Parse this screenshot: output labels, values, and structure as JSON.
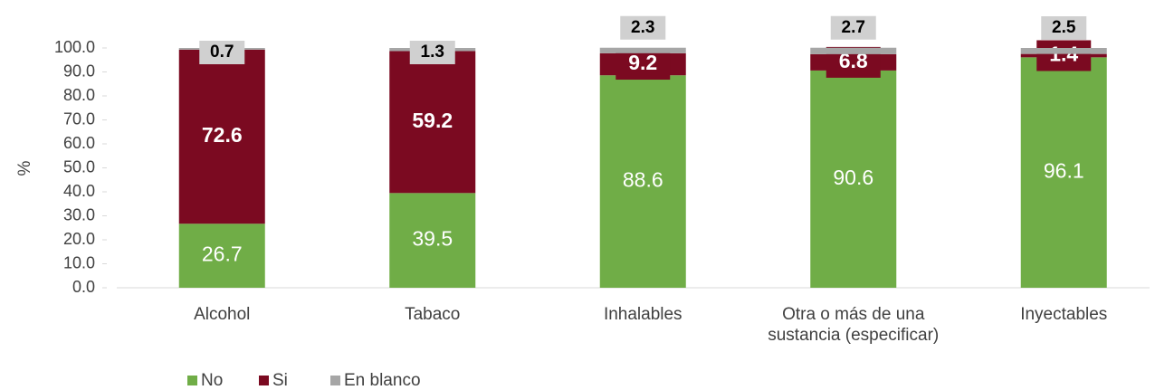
{
  "chart_data": {
    "type": "stacked_bar",
    "ylabel": "%",
    "categories": [
      "Alcohol",
      "Tabaco",
      "Inhalables",
      "Otra o más de una sustancia (especificar)",
      "Inyectables"
    ],
    "series": [
      {
        "name": "No",
        "color": "#70ad47",
        "values": [
          26.7,
          39.5,
          88.6,
          90.6,
          96.1
        ]
      },
      {
        "name": "Si",
        "color": "#7b0a21",
        "values": [
          72.6,
          59.2,
          9.2,
          6.8,
          1.4
        ]
      },
      {
        "name": "En blanco",
        "color": "#a6a6a6",
        "values": [
          0.7,
          1.3,
          2.3,
          2.7,
          2.5
        ]
      }
    ],
    "ylim": [
      0,
      100
    ],
    "yticks": [
      {
        "value": 0,
        "label": "0.0"
      },
      {
        "value": 10,
        "label": "10.0"
      },
      {
        "value": 20,
        "label": "20.0"
      },
      {
        "value": 30,
        "label": "30.0"
      },
      {
        "value": 40,
        "label": "40.0"
      },
      {
        "value": 50,
        "label": "50.0"
      },
      {
        "value": 60,
        "label": "60.0"
      },
      {
        "value": 70,
        "label": "70.0"
      },
      {
        "value": 80,
        "label": "80.0"
      },
      {
        "value": 90,
        "label": "90.0"
      },
      {
        "value": 100,
        "label": "100.0"
      }
    ],
    "grid": false,
    "legend": "bottom-left"
  }
}
